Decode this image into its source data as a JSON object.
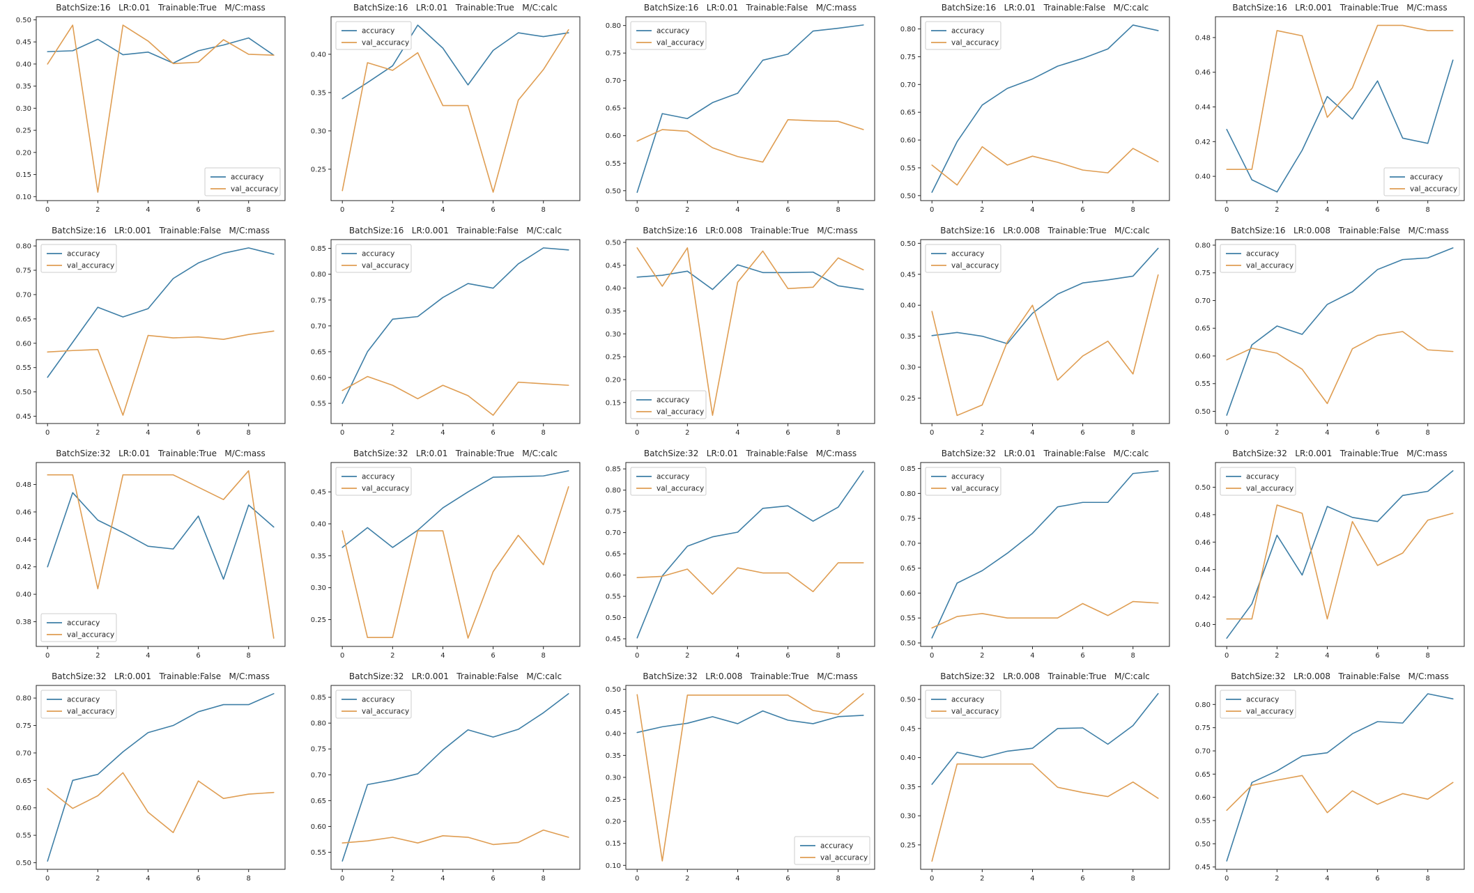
{
  "figure": {
    "background": "#ffffff",
    "rows": 4,
    "cols": 5
  },
  "colors": {
    "accuracy": "#3d7ea6",
    "val_accuracy": "#df9d52",
    "axis": "#262626",
    "tick_label": "#262626",
    "title_text": "#262626",
    "legend_border": "#cccccc",
    "legend_bg": "#ffffff"
  },
  "chart_defaults": {
    "x": [
      0,
      1,
      2,
      3,
      4,
      5,
      6,
      7,
      8,
      9
    ],
    "xticks": [
      0,
      2,
      4,
      6,
      8
    ],
    "xlim": [
      -0.45,
      9.45
    ],
    "grid": false,
    "xlabel": "",
    "ylabel": ""
  },
  "chart_data": [
    {
      "type": "line",
      "title": "BatchSize:16   LR:0.01   Trainable:True   M/C:mass",
      "yticks": [
        0.1,
        0.15,
        0.2,
        0.25,
        0.3,
        0.35,
        0.4,
        0.45,
        0.5
      ],
      "ylim": [
        0.091,
        0.507
      ],
      "legend_loc": "lower right",
      "series": [
        {
          "name": "accuracy",
          "values": [
            0.428,
            0.43,
            0.456,
            0.421,
            0.427,
            0.402,
            0.43,
            0.443,
            0.459,
            0.42
          ]
        },
        {
          "name": "val_accuracy",
          "values": [
            0.4,
            0.488,
            0.11,
            0.488,
            0.452,
            0.401,
            0.404,
            0.455,
            0.422,
            0.42
          ]
        }
      ]
    },
    {
      "type": "line",
      "title": "BatchSize:16   LR:0.01   Trainable:True   M/C:calc",
      "yticks": [
        0.25,
        0.3,
        0.35,
        0.4
      ],
      "ylim": [
        0.209,
        0.449
      ],
      "legend_loc": "upper left",
      "series": [
        {
          "name": "accuracy",
          "values": [
            0.342,
            0.363,
            0.385,
            0.438,
            0.408,
            0.36,
            0.405,
            0.428,
            0.423,
            0.428
          ]
        },
        {
          "name": "val_accuracy",
          "values": [
            0.222,
            0.389,
            0.379,
            0.402,
            0.333,
            0.333,
            0.22,
            0.34,
            0.38,
            0.432
          ]
        }
      ]
    },
    {
      "type": "line",
      "title": "BatchSize:16   LR:0.01   Trainable:False   M/C:mass",
      "yticks": [
        0.5,
        0.55,
        0.6,
        0.65,
        0.7,
        0.75,
        0.8
      ],
      "ylim": [
        0.482,
        0.816
      ],
      "legend_loc": "upper left",
      "series": [
        {
          "name": "accuracy",
          "values": [
            0.497,
            0.64,
            0.631,
            0.66,
            0.677,
            0.737,
            0.748,
            0.79,
            0.795,
            0.801
          ]
        },
        {
          "name": "val_accuracy",
          "values": [
            0.59,
            0.611,
            0.608,
            0.578,
            0.562,
            0.552,
            0.629,
            0.627,
            0.626,
            0.611
          ]
        }
      ]
    },
    {
      "type": "line",
      "title": "BatchSize:16   LR:0.01   Trainable:False   M/C:calc",
      "yticks": [
        0.5,
        0.55,
        0.6,
        0.65,
        0.7,
        0.75,
        0.8
      ],
      "ylim": [
        0.491,
        0.822
      ],
      "legend_loc": "upper left",
      "series": [
        {
          "name": "accuracy",
          "values": [
            0.506,
            0.597,
            0.663,
            0.693,
            0.71,
            0.733,
            0.747,
            0.764,
            0.807,
            0.797
          ]
        },
        {
          "name": "val_accuracy",
          "values": [
            0.555,
            0.519,
            0.588,
            0.555,
            0.571,
            0.56,
            0.546,
            0.541,
            0.585,
            0.561
          ]
        }
      ]
    },
    {
      "type": "line",
      "title": "BatchSize:16   LR:0.001   Trainable:True   M/C:mass",
      "yticks": [
        0.4,
        0.42,
        0.44,
        0.46,
        0.48
      ],
      "ylim": [
        0.386,
        0.492
      ],
      "legend_loc": "lower right",
      "series": [
        {
          "name": "accuracy",
          "values": [
            0.427,
            0.398,
            0.391,
            0.415,
            0.446,
            0.433,
            0.455,
            0.422,
            0.419,
            0.467
          ]
        },
        {
          "name": "val_accuracy",
          "values": [
            0.404,
            0.404,
            0.484,
            0.481,
            0.434,
            0.451,
            0.487,
            0.487,
            0.484,
            0.484
          ]
        }
      ]
    },
    {
      "type": "line",
      "title": "BatchSize:16   LR:0.001   Trainable:False   M/C:mass",
      "yticks": [
        0.45,
        0.5,
        0.55,
        0.6,
        0.65,
        0.7,
        0.75,
        0.8
      ],
      "ylim": [
        0.435,
        0.813
      ],
      "legend_loc": "upper left",
      "series": [
        {
          "name": "accuracy",
          "values": [
            0.53,
            0.602,
            0.674,
            0.654,
            0.671,
            0.733,
            0.765,
            0.785,
            0.796,
            0.783
          ]
        },
        {
          "name": "val_accuracy",
          "values": [
            0.582,
            0.585,
            0.587,
            0.452,
            0.616,
            0.611,
            0.613,
            0.608,
            0.618,
            0.625
          ]
        }
      ]
    },
    {
      "type": "line",
      "title": "BatchSize:16   LR:0.001   Trainable:False   M/C:calc",
      "yticks": [
        0.55,
        0.6,
        0.65,
        0.7,
        0.75,
        0.8,
        0.85
      ],
      "ylim": [
        0.511,
        0.867
      ],
      "legend_loc": "upper left",
      "series": [
        {
          "name": "accuracy",
          "values": [
            0.55,
            0.65,
            0.713,
            0.718,
            0.755,
            0.782,
            0.773,
            0.82,
            0.851,
            0.847
          ]
        },
        {
          "name": "val_accuracy",
          "values": [
            0.575,
            0.602,
            0.585,
            0.559,
            0.585,
            0.565,
            0.527,
            0.591,
            0.588,
            0.585
          ]
        }
      ]
    },
    {
      "type": "line",
      "title": "BatchSize:16   LR:0.008   Trainable:True   M/C:mass",
      "yticks": [
        0.15,
        0.2,
        0.25,
        0.3,
        0.35,
        0.4,
        0.45,
        0.5
      ],
      "ylim": [
        0.104,
        0.506
      ],
      "legend_loc": "lower left",
      "series": [
        {
          "name": "accuracy",
          "values": [
            0.424,
            0.428,
            0.437,
            0.397,
            0.451,
            0.434,
            0.434,
            0.435,
            0.405,
            0.397
          ]
        },
        {
          "name": "val_accuracy",
          "values": [
            0.488,
            0.404,
            0.488,
            0.122,
            0.413,
            0.481,
            0.399,
            0.402,
            0.466,
            0.44
          ]
        }
      ]
    },
    {
      "type": "line",
      "title": "BatchSize:16   LR:0.008   Trainable:True   M/C:calc",
      "yticks": [
        0.25,
        0.3,
        0.35,
        0.4,
        0.45,
        0.5
      ],
      "ylim": [
        0.209,
        0.506
      ],
      "legend_loc": "upper left",
      "series": [
        {
          "name": "accuracy",
          "values": [
            0.351,
            0.356,
            0.35,
            0.338,
            0.387,
            0.418,
            0.436,
            0.441,
            0.447,
            0.492
          ]
        },
        {
          "name": "val_accuracy",
          "values": [
            0.39,
            0.222,
            0.239,
            0.341,
            0.4,
            0.279,
            0.318,
            0.342,
            0.289,
            0.449
          ]
        }
      ]
    },
    {
      "type": "line",
      "title": "BatchSize:16   LR:0.008   Trainable:False   M/C:mass",
      "yticks": [
        0.5,
        0.55,
        0.6,
        0.65,
        0.7,
        0.75,
        0.8
      ],
      "ylim": [
        0.478,
        0.81
      ],
      "legend_loc": "upper left",
      "series": [
        {
          "name": "accuracy",
          "values": [
            0.493,
            0.62,
            0.654,
            0.639,
            0.693,
            0.716,
            0.756,
            0.774,
            0.777,
            0.795
          ]
        },
        {
          "name": "val_accuracy",
          "values": [
            0.593,
            0.614,
            0.605,
            0.576,
            0.514,
            0.613,
            0.637,
            0.644,
            0.611,
            0.608
          ]
        }
      ]
    },
    {
      "type": "line",
      "title": "BatchSize:32   LR:0.01   Trainable:True   M/C:mass",
      "yticks": [
        0.38,
        0.4,
        0.42,
        0.44,
        0.46,
        0.48
      ],
      "ylim": [
        0.362,
        0.496
      ],
      "legend_loc": "lower left",
      "series": [
        {
          "name": "accuracy",
          "values": [
            0.42,
            0.474,
            0.454,
            0.445,
            0.435,
            0.433,
            0.457,
            0.411,
            0.465,
            0.449
          ]
        },
        {
          "name": "val_accuracy",
          "values": [
            0.487,
            0.487,
            0.404,
            0.487,
            0.487,
            0.487,
            0.478,
            0.469,
            0.49,
            0.368
          ]
        }
      ]
    },
    {
      "type": "line",
      "title": "BatchSize:32   LR:0.01   Trainable:True   M/C:calc",
      "yticks": [
        0.25,
        0.3,
        0.35,
        0.4,
        0.45
      ],
      "ylim": [
        0.208,
        0.496
      ],
      "legend_loc": "upper left",
      "series": [
        {
          "name": "accuracy",
          "values": [
            0.363,
            0.394,
            0.363,
            0.39,
            0.425,
            0.45,
            0.473,
            0.474,
            0.475,
            0.483
          ]
        },
        {
          "name": "val_accuracy",
          "values": [
            0.389,
            0.222,
            0.222,
            0.389,
            0.389,
            0.221,
            0.325,
            0.382,
            0.336,
            0.458
          ]
        }
      ]
    },
    {
      "type": "line",
      "title": "BatchSize:32   LR:0.01   Trainable:False   M/C:mass",
      "yticks": [
        0.45,
        0.5,
        0.55,
        0.6,
        0.65,
        0.7,
        0.75,
        0.8,
        0.85
      ],
      "ylim": [
        0.432,
        0.865
      ],
      "legend_loc": "upper left",
      "series": [
        {
          "name": "accuracy",
          "values": [
            0.452,
            0.598,
            0.668,
            0.69,
            0.701,
            0.757,
            0.763,
            0.727,
            0.76,
            0.845
          ]
        },
        {
          "name": "val_accuracy",
          "values": [
            0.594,
            0.597,
            0.614,
            0.555,
            0.617,
            0.605,
            0.605,
            0.561,
            0.629,
            0.629
          ]
        }
      ]
    },
    {
      "type": "line",
      "title": "BatchSize:32   LR:0.01   Trainable:False   M/C:calc",
      "yticks": [
        0.5,
        0.55,
        0.6,
        0.65,
        0.7,
        0.75,
        0.8,
        0.85
      ],
      "ylim": [
        0.493,
        0.862
      ],
      "legend_loc": "upper left",
      "series": [
        {
          "name": "accuracy",
          "values": [
            0.51,
            0.62,
            0.645,
            0.68,
            0.72,
            0.773,
            0.782,
            0.782,
            0.84,
            0.845
          ]
        },
        {
          "name": "val_accuracy",
          "values": [
            0.53,
            0.553,
            0.559,
            0.55,
            0.55,
            0.55,
            0.579,
            0.555,
            0.583,
            0.58
          ]
        }
      ]
    },
    {
      "type": "line",
      "title": "BatchSize:32   LR:0.001   Trainable:True   M/C:mass",
      "yticks": [
        0.4,
        0.42,
        0.44,
        0.46,
        0.48,
        0.5
      ],
      "ylim": [
        0.384,
        0.518
      ],
      "legend_loc": "upper left",
      "series": [
        {
          "name": "accuracy",
          "values": [
            0.39,
            0.415,
            0.465,
            0.436,
            0.486,
            0.478,
            0.475,
            0.494,
            0.497,
            0.512
          ]
        },
        {
          "name": "val_accuracy",
          "values": [
            0.404,
            0.404,
            0.487,
            0.481,
            0.404,
            0.475,
            0.443,
            0.452,
            0.476,
            0.481
          ]
        }
      ]
    },
    {
      "type": "line",
      "title": "BatchSize:32   LR:0.001   Trainable:False   M/C:mass",
      "yticks": [
        0.5,
        0.55,
        0.6,
        0.65,
        0.7,
        0.75,
        0.8
      ],
      "ylim": [
        0.488,
        0.823
      ],
      "legend_loc": "upper left",
      "series": [
        {
          "name": "accuracy",
          "values": [
            0.503,
            0.65,
            0.661,
            0.702,
            0.737,
            0.75,
            0.775,
            0.788,
            0.788,
            0.808
          ]
        },
        {
          "name": "val_accuracy",
          "values": [
            0.635,
            0.599,
            0.622,
            0.664,
            0.592,
            0.555,
            0.649,
            0.617,
            0.625,
            0.628
          ]
        }
      ]
    },
    {
      "type": "line",
      "title": "BatchSize:32   LR:0.001   Trainable:False   M/C:calc",
      "yticks": [
        0.55,
        0.6,
        0.65,
        0.7,
        0.75,
        0.8,
        0.85
      ],
      "ylim": [
        0.517,
        0.873
      ],
      "legend_loc": "upper left",
      "series": [
        {
          "name": "accuracy",
          "values": [
            0.533,
            0.681,
            0.69,
            0.702,
            0.748,
            0.787,
            0.773,
            0.788,
            0.82,
            0.857
          ]
        },
        {
          "name": "val_accuracy",
          "values": [
            0.568,
            0.572,
            0.579,
            0.568,
            0.582,
            0.579,
            0.565,
            0.569,
            0.593,
            0.579
          ]
        }
      ]
    },
    {
      "type": "line",
      "title": "BatchSize:32   LR:0.008   Trainable:True   M/C:mass",
      "yticks": [
        0.1,
        0.15,
        0.2,
        0.25,
        0.3,
        0.35,
        0.4,
        0.45,
        0.5
      ],
      "ylim": [
        0.091,
        0.509
      ],
      "legend_loc": "lower right",
      "series": [
        {
          "name": "accuracy",
          "values": [
            0.402,
            0.415,
            0.423,
            0.438,
            0.422,
            0.451,
            0.43,
            0.422,
            0.438,
            0.441
          ]
        },
        {
          "name": "val_accuracy",
          "values": [
            0.488,
            0.11,
            0.487,
            0.487,
            0.487,
            0.487,
            0.487,
            0.452,
            0.443,
            0.49
          ]
        }
      ]
    },
    {
      "type": "line",
      "title": "BatchSize:32   LR:0.008   Trainable:True   M/C:calc",
      "yticks": [
        0.25,
        0.3,
        0.35,
        0.4,
        0.45,
        0.5
      ],
      "ylim": [
        0.208,
        0.524
      ],
      "legend_loc": "upper left",
      "series": [
        {
          "name": "accuracy",
          "values": [
            0.354,
            0.409,
            0.4,
            0.411,
            0.416,
            0.45,
            0.451,
            0.423,
            0.455,
            0.51
          ]
        },
        {
          "name": "val_accuracy",
          "values": [
            0.222,
            0.389,
            0.389,
            0.389,
            0.389,
            0.349,
            0.34,
            0.333,
            0.358,
            0.33
          ]
        }
      ]
    },
    {
      "type": "line",
      "title": "BatchSize:32   LR:0.008   Trainable:False   M/C:mass",
      "yticks": [
        0.45,
        0.5,
        0.55,
        0.6,
        0.65,
        0.7,
        0.75,
        0.8
      ],
      "ylim": [
        0.445,
        0.841
      ],
      "legend_loc": "upper left",
      "series": [
        {
          "name": "accuracy",
          "values": [
            0.463,
            0.632,
            0.657,
            0.689,
            0.696,
            0.737,
            0.763,
            0.76,
            0.823,
            0.812
          ]
        },
        {
          "name": "val_accuracy",
          "values": [
            0.572,
            0.626,
            0.637,
            0.647,
            0.567,
            0.614,
            0.585,
            0.608,
            0.596,
            0.632
          ]
        }
      ]
    }
  ]
}
